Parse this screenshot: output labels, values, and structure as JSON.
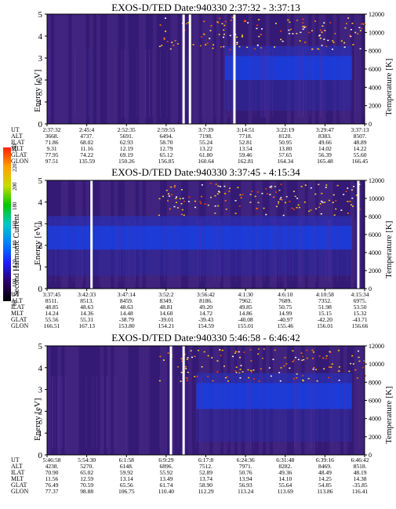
{
  "chart_data": [
    {
      "type": "heatmap",
      "title": "EXOS-D/TED  Date:940330  2:37:32 - 3:37:13",
      "ylabel": "Energy [eV]",
      "y2label": "Temperature [K]",
      "ylim": [
        0,
        5
      ],
      "y2lim": [
        0,
        12000
      ],
      "yticks": [
        "0",
        "1",
        "2",
        "3",
        "4",
        "5"
      ],
      "y2ticks": [
        "0",
        "2000",
        "4000",
        "6000",
        "8000",
        "10000",
        "12000"
      ],
      "row_labels": [
        "UT",
        "ALT",
        "ILAT",
        "MLT",
        "GLAT",
        "GLON"
      ],
      "columns": [
        [
          "2:37:32",
          "3668.",
          "71.86",
          "9.31",
          "77.95",
          "97.51"
        ],
        [
          "2:45:4",
          "4737.",
          "68.02",
          "11.16",
          "74.22",
          "135.59"
        ],
        [
          "2:52:35",
          "5691.",
          "62.93",
          "12.19",
          "69.19",
          "150.26"
        ],
        [
          "2:59:55",
          "6494.",
          "58.70",
          "12.79",
          "65.12",
          "156.85"
        ],
        [
          "3:7:39",
          "7198.",
          "55.24",
          "13.22",
          "61.80",
          "160.64"
        ],
        [
          "3:14:51",
          "7718.",
          "52.81",
          "13.54",
          "59.46",
          "162.81"
        ],
        [
          "3:22:19",
          "8120.",
          "50.95",
          "13.80",
          "57.65",
          "164.34"
        ],
        [
          "3:29:47",
          "8383.",
          "49.66",
          "14.02",
          "56.39",
          "165.48"
        ],
        [
          "3:37:13",
          "8507.",
          "48.89",
          "14.22",
          "55.60",
          "166.45"
        ]
      ],
      "gaps": [
        0.43,
        0.45,
        0.59
      ],
      "band": {
        "start": 0.56,
        "low": 2.0,
        "high": 3.1
      }
    },
    {
      "type": "heatmap",
      "title": "EXOS-D/TED  Date:940330  3:37:45 - 4:15:34",
      "ylabel": "Energy [eV]",
      "y2label": "Temperature [K]",
      "ylim": [
        0,
        5
      ],
      "y2lim": [
        0,
        12000
      ],
      "yticks": [
        "0",
        "1",
        "2",
        "3",
        "4",
        "5"
      ],
      "y2ticks": [
        "0",
        "2000",
        "4000",
        "6000",
        "8000",
        "10000",
        "12000"
      ],
      "row_labels": [
        "UT",
        "ALT",
        "ILAT",
        "MLT",
        "GLAT",
        "GLON"
      ],
      "columns": [
        [
          "3:37:45",
          "8511.",
          "48.85",
          "14.24",
          "55.56",
          "166.51"
        ],
        [
          "3:42:33",
          "8513.",
          "48.63",
          "14.36",
          "55.31",
          "167.13"
        ],
        [
          "3:47:14",
          "8459.",
          "48.63",
          "14.48",
          "-38.79",
          "153.80"
        ],
        [
          "3:52:2",
          "8349.",
          "48.81",
          "14.60",
          "-39.01",
          "154.21"
        ],
        [
          "3:56:42",
          "8186.",
          "49.20",
          "14.72",
          "-39.43",
          "154.59"
        ],
        [
          "4:1:30",
          "7962.",
          "49.85",
          "14.86",
          "-40.08",
          "155.01"
        ],
        [
          "4:6:10",
          "7689.",
          "50.75",
          "14.99",
          "-40.97",
          "155.46"
        ],
        [
          "4:10:58",
          "7352.",
          "51.98",
          "15.15",
          "-42.20",
          "156.01"
        ],
        [
          "4:15:34",
          "6975.",
          "53.50",
          "15.32",
          "-43.71",
          "156.66"
        ]
      ],
      "gaps": [
        0.14,
        0.98
      ],
      "band": {
        "start": 0.0,
        "low": 1.8,
        "high": 2.9
      },
      "colorbar": {
        "label": "Second Harmonic Current",
        "ticks": [
          "80",
          "100",
          "120",
          "140",
          "160",
          "180",
          "200",
          "220",
          "240"
        ],
        "colors": [
          "#000000",
          "#2a006b",
          "#1c1cff",
          "#0080ff",
          "#00c8c8",
          "#00c800",
          "#c8dc00",
          "#ffa000",
          "#ff2000"
        ]
      }
    },
    {
      "type": "heatmap",
      "title": "EXOS-D/TED  Date:940330  5:46:58 - 6:46:42",
      "ylabel": "Energy [eV]",
      "y2label": "Temperature [K]",
      "ylim": [
        0,
        5
      ],
      "y2lim": [
        0,
        12000
      ],
      "yticks": [
        "0",
        "1",
        "2",
        "3",
        "4",
        "5"
      ],
      "y2ticks": [
        "0",
        "2000",
        "4000",
        "6000",
        "8000",
        "10000",
        "12000"
      ],
      "row_labels": [
        "UT",
        "ALT",
        "ILAT",
        "MLT",
        "GLAT",
        "GLON"
      ],
      "columns": [
        [
          "5:46:58",
          "4238.",
          "70.90",
          "11.56",
          "76.49",
          "77.37"
        ],
        [
          "5:54:30",
          "5270.",
          "65.02",
          "12.59",
          "70.59",
          "98.88"
        ],
        [
          "6:1:58",
          "6148.",
          "59.92",
          "13.14",
          "65.56",
          "106.75"
        ],
        [
          "6:9:29",
          "6896.",
          "55.92",
          "13.49",
          "61.74",
          "110.40"
        ],
        [
          "6:17:8",
          "7512.",
          "52.89",
          "13.74",
          "58.90",
          "112.29"
        ],
        [
          "6:24:36",
          "7971.",
          "50.76",
          "13.94",
          "56.93",
          "113.24"
        ],
        [
          "6:31:48",
          "8282.",
          "49.36",
          "14.10",
          "55.64",
          "113.69"
        ],
        [
          "6:39:16",
          "8469.",
          "48.49",
          "14.25",
          "54.85",
          "113.86"
        ],
        [
          "6:46:42",
          "8518.",
          "48.19",
          "14.38",
          "-35.85",
          "116.41"
        ]
      ],
      "gaps": [
        0.39,
        0.43
      ],
      "band": {
        "start": 0.47,
        "low": 2.1,
        "high": 3.3
      }
    }
  ]
}
